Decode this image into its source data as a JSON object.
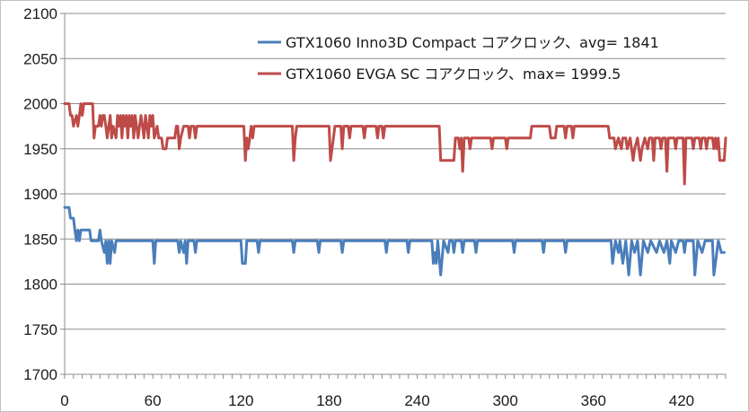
{
  "chart_data": {
    "type": "line",
    "title": "",
    "xlabel": "",
    "ylabel": "",
    "xlim": [
      0,
      450
    ],
    "ylim": [
      1700,
      2100
    ],
    "grid": true,
    "legend_position": "top-right",
    "x_ticks": [
      "0",
      "60",
      "120",
      "180",
      "240",
      "300",
      "360",
      "420"
    ],
    "y_ticks": [
      "2100",
      "2050",
      "2000",
      "1950",
      "1900",
      "1850",
      "1800",
      "1750",
      "1700"
    ],
    "series": [
      {
        "name": "GTX1060 Inno3D Compact コアクロック、avg= 1841",
        "color": "#4a7ebb",
        "points": [
          [
            0,
            1885
          ],
          [
            3,
            1885
          ],
          [
            4,
            1873
          ],
          [
            6,
            1873
          ],
          [
            7,
            1860
          ],
          [
            8,
            1848
          ],
          [
            9,
            1860
          ],
          [
            10,
            1848
          ],
          [
            11,
            1860
          ],
          [
            17,
            1860
          ],
          [
            18,
            1848
          ],
          [
            23,
            1848
          ],
          [
            24,
            1860
          ],
          [
            25,
            1848
          ],
          [
            27,
            1835
          ],
          [
            28,
            1848
          ],
          [
            29,
            1823
          ],
          [
            30,
            1848
          ],
          [
            31,
            1823
          ],
          [
            32,
            1848
          ],
          [
            34,
            1835
          ],
          [
            35,
            1848
          ],
          [
            60,
            1848
          ],
          [
            61,
            1823
          ],
          [
            62,
            1848
          ],
          [
            77,
            1848
          ],
          [
            78,
            1835
          ],
          [
            79,
            1848
          ],
          [
            81,
            1835
          ],
          [
            82,
            1848
          ],
          [
            83,
            1823
          ],
          [
            84,
            1848
          ],
          [
            88,
            1848
          ],
          [
            89,
            1835
          ],
          [
            90,
            1848
          ],
          [
            120,
            1848
          ],
          [
            121,
            1823
          ],
          [
            123,
            1823
          ],
          [
            124,
            1848
          ],
          [
            131,
            1848
          ],
          [
            132,
            1835
          ],
          [
            133,
            1848
          ],
          [
            155,
            1848
          ],
          [
            156,
            1835
          ],
          [
            157,
            1848
          ],
          [
            172,
            1848
          ],
          [
            173,
            1835
          ],
          [
            174,
            1848
          ],
          [
            188,
            1848
          ],
          [
            189,
            1835
          ],
          [
            190,
            1848
          ],
          [
            218,
            1848
          ],
          [
            219,
            1835
          ],
          [
            220,
            1848
          ],
          [
            233,
            1848
          ],
          [
            234,
            1835
          ],
          [
            235,
            1848
          ],
          [
            250,
            1848
          ],
          [
            251,
            1823
          ],
          [
            252,
            1835
          ],
          [
            253,
            1823
          ],
          [
            254,
            1848
          ],
          [
            256,
            1810
          ],
          [
            258,
            1848
          ],
          [
            261,
            1835
          ],
          [
            262,
            1848
          ],
          [
            264,
            1848
          ],
          [
            265,
            1835
          ],
          [
            266,
            1848
          ],
          [
            270,
            1848
          ],
          [
            271,
            1835
          ],
          [
            272,
            1848
          ],
          [
            279,
            1848
          ],
          [
            280,
            1835
          ],
          [
            281,
            1848
          ],
          [
            305,
            1848
          ],
          [
            306,
            1835
          ],
          [
            307,
            1848
          ],
          [
            325,
            1848
          ],
          [
            326,
            1835
          ],
          [
            327,
            1848
          ],
          [
            340,
            1848
          ],
          [
            341,
            1835
          ],
          [
            342,
            1848
          ],
          [
            372,
            1848
          ],
          [
            373,
            1823
          ],
          [
            375,
            1848
          ],
          [
            377,
            1835
          ],
          [
            378,
            1848
          ],
          [
            380,
            1823
          ],
          [
            382,
            1848
          ],
          [
            384,
            1810
          ],
          [
            386,
            1848
          ],
          [
            388,
            1835
          ],
          [
            390,
            1848
          ],
          [
            392,
            1810
          ],
          [
            394,
            1848
          ],
          [
            397,
            1835
          ],
          [
            399,
            1848
          ],
          [
            403,
            1835
          ],
          [
            405,
            1848
          ],
          [
            408,
            1835
          ],
          [
            410,
            1848
          ],
          [
            412,
            1823
          ],
          [
            413,
            1848
          ],
          [
            416,
            1835
          ],
          [
            418,
            1848
          ],
          [
            421,
            1848
          ],
          [
            422,
            1835
          ],
          [
            423,
            1848
          ],
          [
            428,
            1848
          ],
          [
            429,
            1810
          ],
          [
            431,
            1848
          ],
          [
            434,
            1835
          ],
          [
            436,
            1848
          ],
          [
            441,
            1848
          ],
          [
            442,
            1810
          ],
          [
            443,
            1823
          ],
          [
            445,
            1848
          ],
          [
            447,
            1835
          ],
          [
            449,
            1835
          ]
        ]
      },
      {
        "name": "GTX1060 EVGA SC コアクロック、max= 1999.5",
        "color": "#be4b48",
        "points": [
          [
            0,
            2000
          ],
          [
            3,
            2000
          ],
          [
            4,
            1987
          ],
          [
            5,
            1987
          ],
          [
            6,
            1975
          ],
          [
            8,
            1987
          ],
          [
            9,
            1975
          ],
          [
            10,
            1987
          ],
          [
            11,
            2000
          ],
          [
            12,
            1987
          ],
          [
            13,
            2000
          ],
          [
            19,
            2000
          ],
          [
            20,
            1962
          ],
          [
            21,
            1975
          ],
          [
            23,
            1975
          ],
          [
            24,
            1987
          ],
          [
            25,
            1975
          ],
          [
            26,
            1987
          ],
          [
            27,
            1987
          ],
          [
            28,
            1975
          ],
          [
            29,
            1962
          ],
          [
            30,
            1975
          ],
          [
            31,
            1987
          ],
          [
            32,
            1962
          ],
          [
            33,
            1975
          ],
          [
            35,
            1962
          ],
          [
            36,
            1987
          ],
          [
            37,
            1975
          ],
          [
            38,
            1987
          ],
          [
            39,
            1962
          ],
          [
            40,
            1987
          ],
          [
            41,
            1975
          ],
          [
            42,
            1987
          ],
          [
            43,
            1962
          ],
          [
            44,
            1987
          ],
          [
            45,
            1975
          ],
          [
            46,
            1987
          ],
          [
            47,
            1962
          ],
          [
            48,
            1987
          ],
          [
            50,
            1962
          ],
          [
            51,
            1975
          ],
          [
            52,
            1987
          ],
          [
            53,
            1975
          ],
          [
            54,
            1962
          ],
          [
            55,
            1987
          ],
          [
            56,
            1975
          ],
          [
            57,
            1962
          ],
          [
            58,
            1987
          ],
          [
            59,
            1975
          ],
          [
            60,
            1987
          ],
          [
            61,
            1962
          ],
          [
            63,
            1975
          ],
          [
            64,
            1962
          ],
          [
            66,
            1962
          ],
          [
            67,
            1950
          ],
          [
            69,
            1950
          ],
          [
            70,
            1962
          ],
          [
            75,
            1962
          ],
          [
            76,
            1975
          ],
          [
            77,
            1975
          ],
          [
            78,
            1950
          ],
          [
            79,
            1962
          ],
          [
            81,
            1975
          ],
          [
            84,
            1975
          ],
          [
            85,
            1962
          ],
          [
            86,
            1975
          ],
          [
            88,
            1975
          ],
          [
            89,
            1962
          ],
          [
            90,
            1975
          ],
          [
            122,
            1975
          ],
          [
            123,
            1937
          ],
          [
            124,
            1962
          ],
          [
            125,
            1950
          ],
          [
            126,
            1962
          ],
          [
            127,
            1975
          ],
          [
            128,
            1962
          ],
          [
            129,
            1975
          ],
          [
            155,
            1975
          ],
          [
            156,
            1937
          ],
          [
            157,
            1962
          ],
          [
            158,
            1975
          ],
          [
            180,
            1975
          ],
          [
            181,
            1937
          ],
          [
            183,
            1962
          ],
          [
            184,
            1975
          ],
          [
            188,
            1975
          ],
          [
            189,
            1950
          ],
          [
            190,
            1975
          ],
          [
            193,
            1975
          ],
          [
            194,
            1962
          ],
          [
            195,
            1975
          ],
          [
            203,
            1975
          ],
          [
            204,
            1962
          ],
          [
            205,
            1975
          ],
          [
            212,
            1975
          ],
          [
            213,
            1962
          ],
          [
            214,
            1975
          ],
          [
            216,
            1975
          ],
          [
            217,
            1962
          ],
          [
            218,
            1975
          ],
          [
            255,
            1975
          ],
          [
            256,
            1937
          ],
          [
            265,
            1937
          ],
          [
            266,
            1962
          ],
          [
            268,
            1962
          ],
          [
            269,
            1950
          ],
          [
            270,
            1962
          ],
          [
            271,
            1925
          ],
          [
            272,
            1962
          ],
          [
            275,
            1962
          ],
          [
            276,
            1950
          ],
          [
            277,
            1962
          ],
          [
            290,
            1962
          ],
          [
            291,
            1950
          ],
          [
            292,
            1962
          ],
          [
            300,
            1962
          ],
          [
            301,
            1950
          ],
          [
            302,
            1962
          ],
          [
            317,
            1962
          ],
          [
            318,
            1975
          ],
          [
            330,
            1975
          ],
          [
            331,
            1962
          ],
          [
            334,
            1962
          ],
          [
            335,
            1975
          ],
          [
            340,
            1975
          ],
          [
            341,
            1962
          ],
          [
            342,
            1975
          ],
          [
            345,
            1975
          ],
          [
            346,
            1962
          ],
          [
            347,
            1975
          ],
          [
            370,
            1975
          ],
          [
            371,
            1962
          ],
          [
            374,
            1962
          ],
          [
            375,
            1950
          ],
          [
            377,
            1962
          ],
          [
            379,
            1950
          ],
          [
            380,
            1962
          ],
          [
            382,
            1962
          ],
          [
            383,
            1950
          ],
          [
            385,
            1962
          ],
          [
            387,
            1937
          ],
          [
            388,
            1950
          ],
          [
            390,
            1962
          ],
          [
            392,
            1937
          ],
          [
            393,
            1950
          ],
          [
            395,
            1962
          ],
          [
            397,
            1950
          ],
          [
            398,
            1962
          ],
          [
            400,
            1962
          ],
          [
            401,
            1937
          ],
          [
            402,
            1962
          ],
          [
            405,
            1962
          ],
          [
            406,
            1950
          ],
          [
            407,
            1962
          ],
          [
            409,
            1962
          ],
          [
            410,
            1925
          ],
          [
            411,
            1962
          ],
          [
            415,
            1962
          ],
          [
            416,
            1950
          ],
          [
            417,
            1962
          ],
          [
            421,
            1962
          ],
          [
            422,
            1911
          ],
          [
            423,
            1962
          ],
          [
            427,
            1962
          ],
          [
            428,
            1950
          ],
          [
            429,
            1962
          ],
          [
            432,
            1962
          ],
          [
            433,
            1950
          ],
          [
            434,
            1962
          ],
          [
            436,
            1962
          ],
          [
            437,
            1950
          ],
          [
            438,
            1962
          ],
          [
            441,
            1962
          ],
          [
            442,
            1950
          ],
          [
            443,
            1962
          ],
          [
            444,
            1950
          ],
          [
            445,
            1962
          ],
          [
            446,
            1937
          ],
          [
            449,
            1937
          ],
          [
            450,
            1962
          ]
        ]
      }
    ]
  }
}
